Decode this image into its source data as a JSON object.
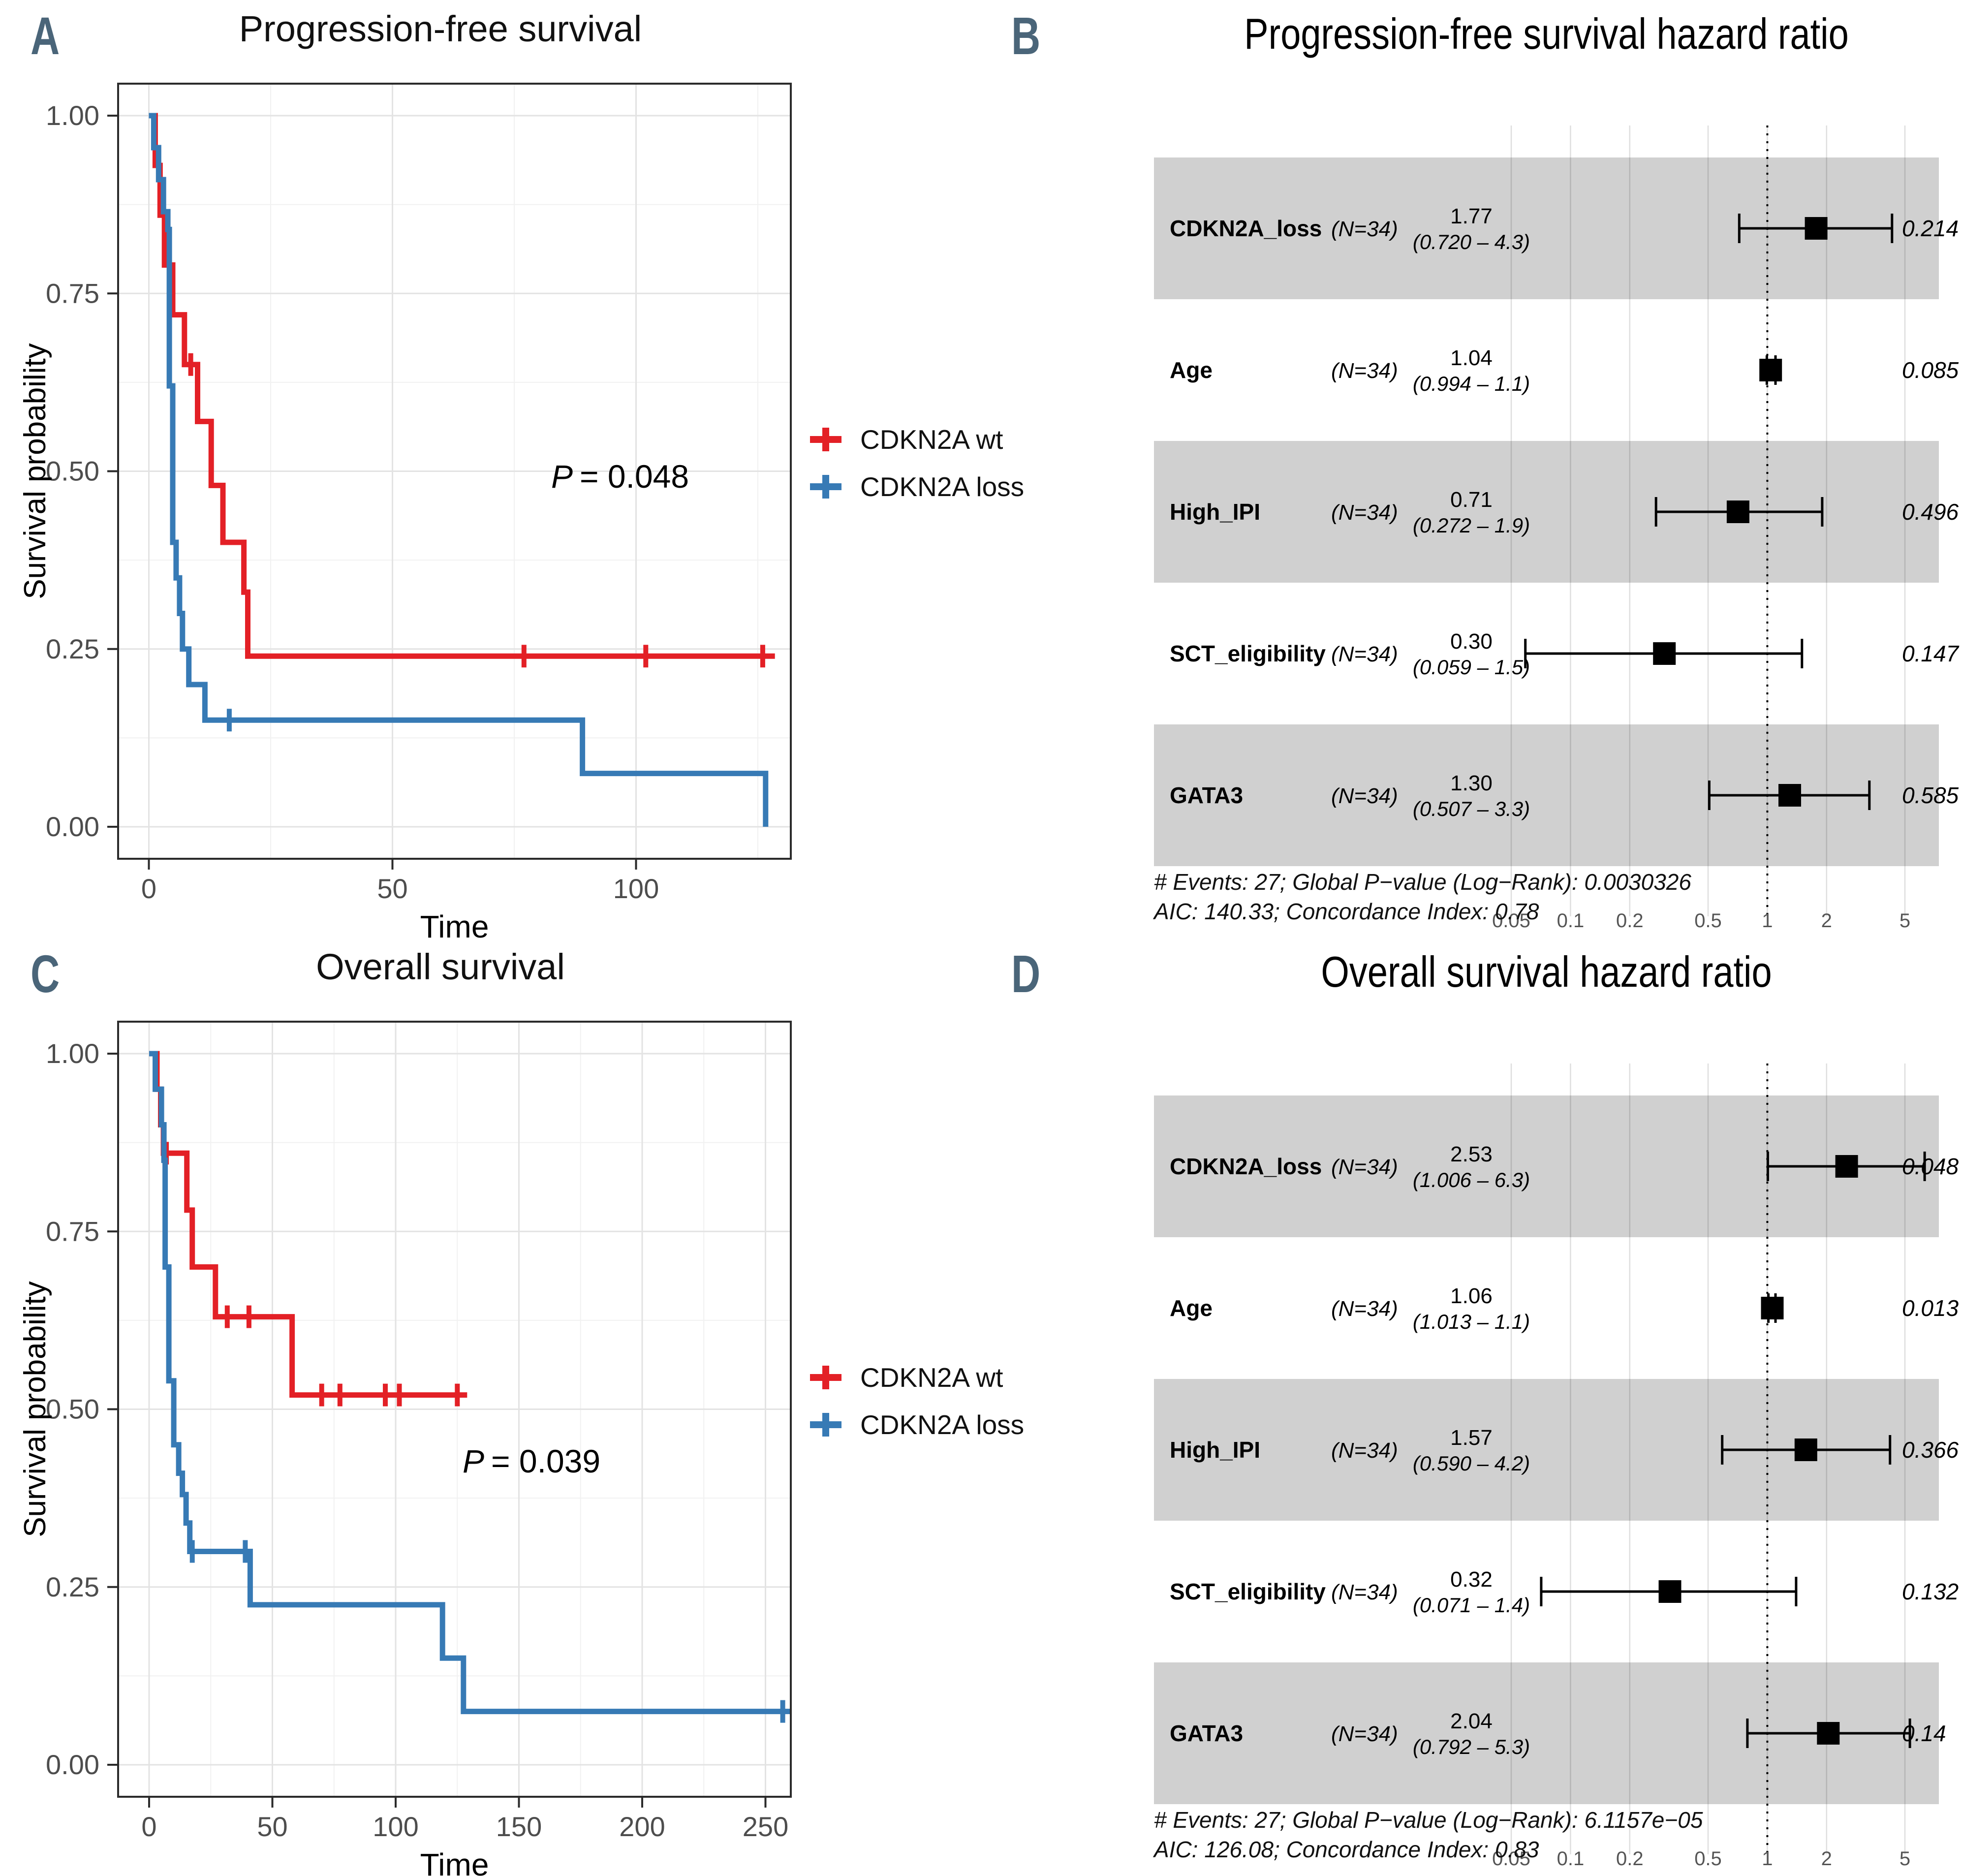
{
  "colors": {
    "red": "#e32026",
    "blue": "#377ab5",
    "panel_letter": "#4a6579",
    "band_gray": "#d0d0d0",
    "grid_major": "#e3e3e3",
    "grid_minor": "#f1f1f1",
    "axis_text": "#4d4d4d",
    "marker_black": "#000000"
  },
  "chart_data": [
    {
      "id": "A",
      "type": "line",
      "subtype": "kaplan-meier",
      "panel_label": "A",
      "title": "Progression-free survival",
      "xlabel": "Time",
      "ylabel": "Survival probability",
      "xlim": [
        0,
        128
      ],
      "ylim": [
        0,
        1
      ],
      "xticks": [
        0,
        50,
        100
      ],
      "xminor": [
        25,
        75,
        125
      ],
      "yticks": [
        0,
        0.25,
        0.5,
        0.75,
        1
      ],
      "yminor": [
        0.125,
        0.375,
        0.625,
        0.875
      ],
      "grid": "on",
      "p_prefix": "P",
      "p_rest": "= 0.048",
      "legend_position": "right",
      "legend": [
        {
          "label": "CDKN2A wt",
          "color_key": "red"
        },
        {
          "label": "CDKN2A loss",
          "color_key": "blue"
        }
      ],
      "series": [
        {
          "name": "CDKN2A wt",
          "color_key": "red",
          "points": [
            [
              0,
              1.0
            ],
            [
              1.3,
              0.93
            ],
            [
              2.3,
              0.86
            ],
            [
              3.2,
              0.79
            ],
            [
              4.9,
              0.72
            ],
            [
              7.3,
              0.65
            ],
            [
              10,
              0.57
            ],
            [
              12.8,
              0.48
            ],
            [
              15.2,
              0.4
            ],
            [
              19.5,
              0.33
            ],
            [
              20.3,
              0.24
            ]
          ],
          "end": 128.5,
          "censors": [
            [
              8.6,
              0.65
            ],
            [
              77,
              0.24
            ],
            [
              102,
              0.24
            ],
            [
              126,
              0.24
            ]
          ]
        },
        {
          "name": "CDKN2A loss",
          "color_key": "blue",
          "points": [
            [
              0,
              1.0
            ],
            [
              1,
              0.955
            ],
            [
              2,
              0.91
            ],
            [
              3,
              0.865
            ],
            [
              3.9,
              0.84
            ],
            [
              4.2,
              0.62
            ],
            [
              4.9,
              0.4
            ],
            [
              5.6,
              0.35
            ],
            [
              6.3,
              0.3
            ],
            [
              6.9,
              0.25
            ],
            [
              8.2,
              0.2
            ],
            [
              11.5,
              0.15
            ],
            [
              89,
              0.075
            ],
            [
              126.6,
              0
            ]
          ],
          "end": 126.6,
          "censors": [
            [
              16.5,
              0.15
            ]
          ]
        }
      ]
    },
    {
      "id": "B",
      "type": "scatter",
      "subtype": "forest-plot",
      "panel_label": "B",
      "title": "Progression-free survival hazard ratio",
      "xscale": "log10",
      "xticks": [
        "0.05",
        "0.1",
        "0.2",
        "0.5",
        "1",
        "2",
        "5"
      ],
      "reference_line": 1,
      "rows": [
        {
          "name": "CDKN2A_loss",
          "n": "(N=34)",
          "hr": 1.77,
          "hr_text": "1.77",
          "ci_text": "(0.720 – 4.3)",
          "lo": 0.72,
          "hi": 4.3,
          "p": "0.214",
          "sig": ""
        },
        {
          "name": "Age",
          "n": "(N=34)",
          "hr": 1.04,
          "hr_text": "1.04",
          "ci_text": "(0.994 – 1.1)",
          "lo": 0.994,
          "hi": 1.1,
          "p": "0.085",
          "sig": ""
        },
        {
          "name": "High_IPI",
          "n": "(N=34)",
          "hr": 0.71,
          "hr_text": "0.71",
          "ci_text": "(0.272 – 1.9)",
          "lo": 0.272,
          "hi": 1.9,
          "p": "0.496",
          "sig": ""
        },
        {
          "name": "SCT_eligibility",
          "n": "(N=34)",
          "hr": 0.3,
          "hr_text": "0.30",
          "ci_text": "(0.059 – 1.5)",
          "lo": 0.059,
          "hi": 1.5,
          "p": "0.147",
          "sig": ""
        },
        {
          "name": "GATA3",
          "n": "(N=34)",
          "hr": 1.3,
          "hr_text": "1.30",
          "ci_text": "(0.507 – 3.3)",
          "lo": 0.507,
          "hi": 3.3,
          "p": "0.585",
          "sig": ""
        }
      ],
      "footer1": "# Events: 27; Global P−value (Log−Rank): 0.0030326",
      "footer2": "AIC: 140.33; Concordance Index: 0.78"
    },
    {
      "id": "C",
      "type": "line",
      "subtype": "kaplan-meier",
      "panel_label": "C",
      "title": "Overall survival",
      "xlabel": "Time",
      "ylabel": "Survival probability",
      "xlim": [
        0,
        260
      ],
      "ylim": [
        0,
        1
      ],
      "xticks": [
        0,
        50,
        100,
        150,
        200,
        250
      ],
      "xminor": [
        25,
        75,
        125,
        175,
        225
      ],
      "yticks": [
        0,
        0.25,
        0.5,
        0.75,
        1
      ],
      "yminor": [
        0.125,
        0.375,
        0.625,
        0.875
      ],
      "grid": "on",
      "p_prefix": "P",
      "p_rest": "= 0.039",
      "legend_position": "right",
      "legend": [
        {
          "label": "CDKN2A wt",
          "color_key": "red"
        },
        {
          "label": "CDKN2A loss",
          "color_key": "blue"
        }
      ],
      "series": [
        {
          "name": "CDKN2A wt",
          "color_key": "red",
          "points": [
            [
              0,
              1.0
            ],
            [
              3.2,
              0.95
            ],
            [
              4.7,
              0.9
            ],
            [
              5.8,
              0.86
            ],
            [
              15.3,
              0.78
            ],
            [
              17.5,
              0.7
            ],
            [
              26.9,
              0.63
            ],
            [
              58,
              0.52
            ]
          ],
          "end": 129,
          "censors": [
            [
              7,
              0.86
            ],
            [
              31.7,
              0.63
            ],
            [
              40.5,
              0.63
            ],
            [
              70,
              0.52
            ],
            [
              77.4,
              0.52
            ],
            [
              95.8,
              0.52
            ],
            [
              101.5,
              0.52
            ],
            [
              125,
              0.52
            ]
          ]
        },
        {
          "name": "CDKN2A loss",
          "color_key": "blue",
          "points": [
            [
              0,
              1.0
            ],
            [
              2.5,
              0.95
            ],
            [
              5,
              0.9
            ],
            [
              6,
              0.85
            ],
            [
              6.5,
              0.7
            ],
            [
              8,
              0.54
            ],
            [
              10,
              0.45
            ],
            [
              12,
              0.41
            ],
            [
              13.5,
              0.38
            ],
            [
              15,
              0.34
            ],
            [
              16.5,
              0.3
            ],
            [
              41,
              0.225
            ],
            [
              119,
              0.15
            ],
            [
              127.5,
              0.075
            ]
          ],
          "end": 260,
          "censors": [
            [
              17.5,
              0.3
            ],
            [
              39,
              0.3
            ],
            [
              257,
              0.075
            ]
          ]
        }
      ]
    },
    {
      "id": "D",
      "type": "scatter",
      "subtype": "forest-plot",
      "panel_label": "D",
      "title": "Overall survival hazard ratio",
      "xscale": "log10",
      "xticks": [
        "0.05",
        "0.1",
        "0.2",
        "0.5",
        "1",
        "2",
        "5"
      ],
      "reference_line": 1,
      "rows": [
        {
          "name": "CDKN2A_loss",
          "n": "(N=34)",
          "hr": 2.53,
          "hr_text": "2.53",
          "ci_text": "(1.006 – 6.3)",
          "lo": 1.006,
          "hi": 6.3,
          "p": "0.048",
          "sig": "*"
        },
        {
          "name": "Age",
          "n": "(N=34)",
          "hr": 1.06,
          "hr_text": "1.06",
          "ci_text": "(1.013 – 1.1)",
          "lo": 1.013,
          "hi": 1.1,
          "p": "0.013",
          "sig": "*"
        },
        {
          "name": "High_IPI",
          "n": "(N=34)",
          "hr": 1.57,
          "hr_text": "1.57",
          "ci_text": "(0.590 – 4.2)",
          "lo": 0.59,
          "hi": 4.2,
          "p": "0.366",
          "sig": ""
        },
        {
          "name": "SCT_eligibility",
          "n": "(N=34)",
          "hr": 0.32,
          "hr_text": "0.32",
          "ci_text": "(0.071 – 1.4)",
          "lo": 0.071,
          "hi": 1.4,
          "p": "0.132",
          "sig": ""
        },
        {
          "name": "GATA3",
          "n": "(N=34)",
          "hr": 2.04,
          "hr_text": "2.04",
          "ci_text": "(0.792 – 5.3)",
          "lo": 0.792,
          "hi": 5.3,
          "p": "0.14",
          "sig": ""
        }
      ],
      "footer1": "# Events: 27; Global P−value (Log−Rank): 6.1157e−05",
      "footer2": "AIC: 126.08; Concordance Index: 0.83"
    }
  ]
}
